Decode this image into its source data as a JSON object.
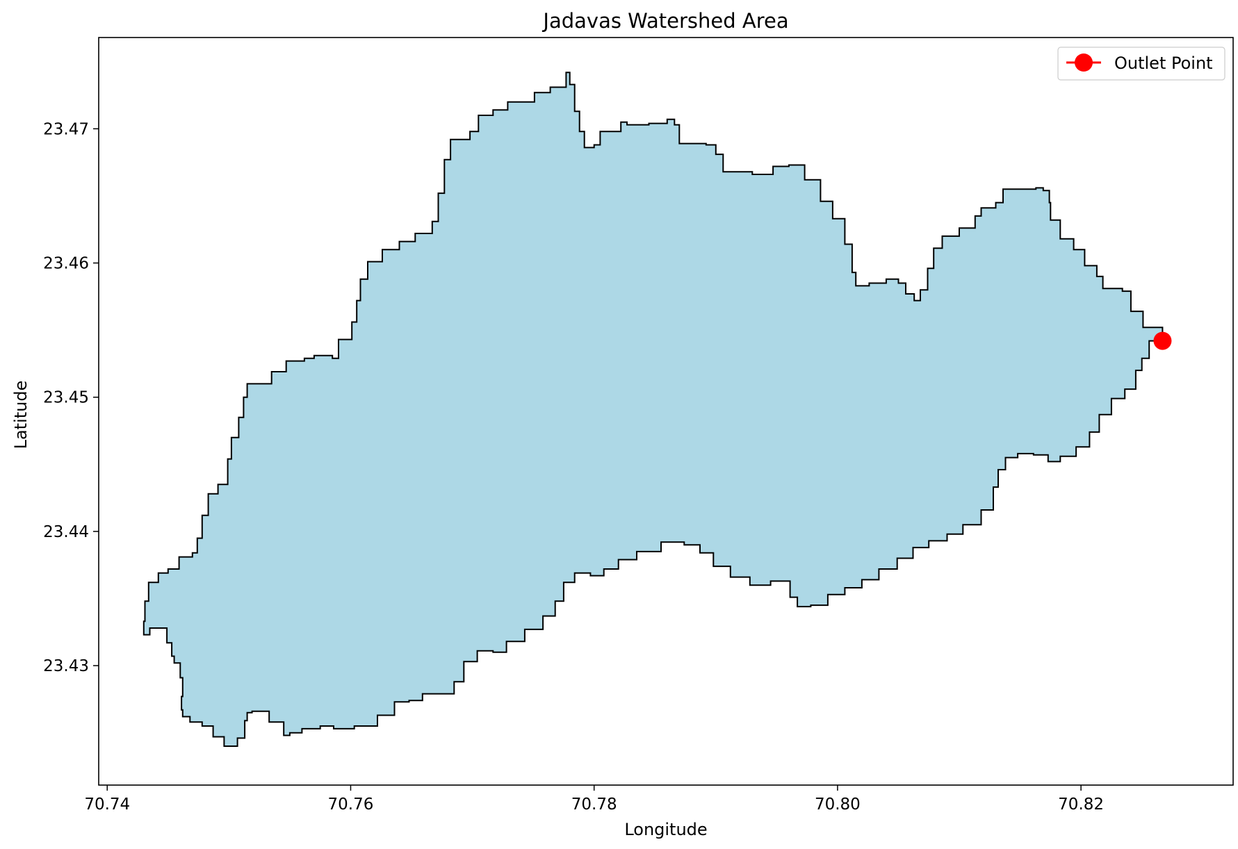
{
  "chart_data": {
    "type": "map",
    "title": "Jadavas Watershed Area",
    "xlabel": "Longitude",
    "ylabel": "Latitude",
    "xlim": [
      70.7393,
      70.8325
    ],
    "ylim": [
      23.4211,
      23.4768
    ],
    "xticks": [
      70.74,
      70.76,
      70.78,
      70.8,
      70.82
    ],
    "xtick_labels": [
      "70.74",
      "70.76",
      "70.78",
      "70.80",
      "70.82"
    ],
    "yticks": [
      23.43,
      23.44,
      23.45,
      23.46,
      23.47
    ],
    "ytick_labels": [
      "23.43",
      "23.44",
      "23.45",
      "23.46",
      "23.47"
    ],
    "grid": false,
    "legend_position": "top-right",
    "watershed": {
      "fill": "#add8e6",
      "edge": "#000000",
      "boundary": [
        [
          70.8267,
          23.4542
        ],
        [
          70.8251,
          23.4552
        ],
        [
          70.8241,
          23.4564
        ],
        [
          70.8234,
          23.4579
        ],
        [
          70.8218,
          23.4581
        ],
        [
          70.8213,
          23.459
        ],
        [
          70.8203,
          23.4598
        ],
        [
          70.8194,
          23.461
        ],
        [
          70.8183,
          23.4618
        ],
        [
          70.8175,
          23.4632
        ],
        [
          70.8174,
          23.4645
        ],
        [
          70.8169,
          23.4654
        ],
        [
          70.8163,
          23.4656
        ],
        [
          70.8136,
          23.4655
        ],
        [
          70.813,
          23.4645
        ],
        [
          70.8118,
          23.4641
        ],
        [
          70.8113,
          23.4635
        ],
        [
          70.81,
          23.4626
        ],
        [
          70.8086,
          23.462
        ],
        [
          70.8079,
          23.4611
        ],
        [
          70.8074,
          23.4596
        ],
        [
          70.8068,
          23.458
        ],
        [
          70.8063,
          23.4572
        ],
        [
          70.8056,
          23.4577
        ],
        [
          70.805,
          23.4585
        ],
        [
          70.804,
          23.4588
        ],
        [
          70.8026,
          23.4585
        ],
        [
          70.8015,
          23.4583
        ],
        [
          70.8012,
          23.4593
        ],
        [
          70.8006,
          23.4614
        ],
        [
          70.7996,
          23.4633
        ],
        [
          70.7986,
          23.4646
        ],
        [
          70.7973,
          23.4662
        ],
        [
          70.796,
          23.4673
        ],
        [
          70.7947,
          23.4672
        ],
        [
          70.793,
          23.4666
        ],
        [
          70.7906,
          23.4668
        ],
        [
          70.79,
          23.4681
        ],
        [
          70.7892,
          23.4688
        ],
        [
          70.787,
          23.4689
        ],
        [
          70.7866,
          23.4703
        ],
        [
          70.786,
          23.4707
        ],
        [
          70.7845,
          23.4704
        ],
        [
          70.7827,
          23.4703
        ],
        [
          70.7822,
          23.4705
        ],
        [
          70.7805,
          23.4698
        ],
        [
          70.78,
          23.4688
        ],
        [
          70.7792,
          23.4686
        ],
        [
          70.7788,
          23.4698
        ],
        [
          70.7784,
          23.4713
        ],
        [
          70.778,
          23.4733
        ],
        [
          70.7777,
          23.4742
        ],
        [
          70.7764,
          23.4731
        ],
        [
          70.7751,
          23.4727
        ],
        [
          70.7729,
          23.472
        ],
        [
          70.7717,
          23.4714
        ],
        [
          70.7705,
          23.471
        ],
        [
          70.7698,
          23.4698
        ],
        [
          70.7682,
          23.4692
        ],
        [
          70.7677,
          23.4677
        ],
        [
          70.7672,
          23.4652
        ],
        [
          70.7667,
          23.4631
        ],
        [
          70.7653,
          23.4622
        ],
        [
          70.764,
          23.4616
        ],
        [
          70.7626,
          23.461
        ],
        [
          70.7614,
          23.4601
        ],
        [
          70.7608,
          23.4588
        ],
        [
          70.7605,
          23.4572
        ],
        [
          70.7601,
          23.4556
        ],
        [
          70.759,
          23.4543
        ],
        [
          70.7585,
          23.4529
        ],
        [
          70.757,
          23.4531
        ],
        [
          70.7562,
          23.4529
        ],
        [
          70.7553,
          23.4527
        ],
        [
          70.7547,
          23.4527
        ],
        [
          70.7535,
          23.4519
        ],
        [
          70.7515,
          23.451
        ],
        [
          70.7512,
          23.45
        ],
        [
          70.7508,
          23.4485
        ],
        [
          70.7502,
          23.447
        ],
        [
          70.7499,
          23.4454
        ],
        [
          70.7491,
          23.4435
        ],
        [
          70.7483,
          23.4428
        ],
        [
          70.7478,
          23.4412
        ],
        [
          70.7474,
          23.4395
        ],
        [
          70.747,
          23.4384
        ],
        [
          70.7459,
          23.4381
        ],
        [
          70.745,
          23.4372
        ],
        [
          70.7442,
          23.4369
        ],
        [
          70.7434,
          23.4362
        ],
        [
          70.7431,
          23.4348
        ],
        [
          70.743,
          23.4333
        ],
        [
          70.7435,
          23.4323
        ],
        [
          70.7449,
          23.4328
        ],
        [
          70.7453,
          23.4317
        ],
        [
          70.7455,
          23.4307
        ],
        [
          70.746,
          23.4302
        ],
        [
          70.7462,
          23.4291
        ],
        [
          70.7461,
          23.4277
        ],
        [
          70.7462,
          23.4267
        ],
        [
          70.7468,
          23.4262
        ],
        [
          70.7478,
          23.4258
        ],
        [
          70.7487,
          23.4255
        ],
        [
          70.7496,
          23.4247
        ],
        [
          70.7507,
          23.424
        ],
        [
          70.7513,
          23.4246
        ],
        [
          70.7515,
          23.4259
        ],
        [
          70.7519,
          23.4265
        ],
        [
          70.7533,
          23.4266
        ],
        [
          70.7545,
          23.4258
        ],
        [
          70.755,
          23.4248
        ],
        [
          70.756,
          23.425
        ],
        [
          70.7575,
          23.4253
        ],
        [
          70.7586,
          23.4255
        ],
        [
          70.7603,
          23.4253
        ],
        [
          70.7622,
          23.4255
        ],
        [
          70.7636,
          23.4263
        ],
        [
          70.7648,
          23.4273
        ],
        [
          70.7659,
          23.4274
        ],
        [
          70.7671,
          23.4279
        ],
        [
          70.7685,
          23.4279
        ],
        [
          70.7693,
          23.4288
        ],
        [
          70.7704,
          23.4303
        ],
        [
          70.7717,
          23.4311
        ],
        [
          70.7728,
          23.431
        ],
        [
          70.7743,
          23.4318
        ],
        [
          70.7758,
          23.4327
        ],
        [
          70.7768,
          23.4337
        ],
        [
          70.7775,
          23.4348
        ],
        [
          70.7784,
          23.4362
        ],
        [
          70.7797,
          23.4369
        ],
        [
          70.7808,
          23.4367
        ],
        [
          70.782,
          23.4372
        ],
        [
          70.7835,
          23.4379
        ],
        [
          70.7855,
          23.4385
        ],
        [
          70.7874,
          23.4392
        ],
        [
          70.7887,
          23.439
        ],
        [
          70.7898,
          23.4384
        ],
        [
          70.7912,
          23.4374
        ],
        [
          70.7928,
          23.4366
        ],
        [
          70.7945,
          23.436
        ],
        [
          70.7961,
          23.4363
        ],
        [
          70.7967,
          23.4351
        ],
        [
          70.7978,
          23.4344
        ],
        [
          70.7992,
          23.4345
        ],
        [
          70.8006,
          23.4353
        ],
        [
          70.802,
          23.4358
        ],
        [
          70.8034,
          23.4364
        ],
        [
          70.8049,
          23.4372
        ],
        [
          70.8062,
          23.438
        ],
        [
          70.8075,
          23.4388
        ],
        [
          70.809,
          23.4393
        ],
        [
          70.8103,
          23.4398
        ],
        [
          70.8118,
          23.4405
        ],
        [
          70.8128,
          23.4416
        ],
        [
          70.8132,
          23.4433
        ],
        [
          70.8138,
          23.4446
        ],
        [
          70.8148,
          23.4455
        ],
        [
          70.8161,
          23.4458
        ],
        [
          70.8173,
          23.4457
        ],
        [
          70.8183,
          23.4452
        ],
        [
          70.8196,
          23.4456
        ],
        [
          70.8207,
          23.4463
        ],
        [
          70.8215,
          23.4474
        ],
        [
          70.8225,
          23.4487
        ],
        [
          70.8236,
          23.4499
        ],
        [
          70.8245,
          23.4506
        ],
        [
          70.825,
          23.452
        ],
        [
          70.8256,
          23.4529
        ],
        [
          70.8267,
          23.4542
        ]
      ]
    },
    "outlet_point": {
      "label": "Outlet Point",
      "lon": 70.8267,
      "lat": 23.4542,
      "color": "#ff0000"
    }
  }
}
